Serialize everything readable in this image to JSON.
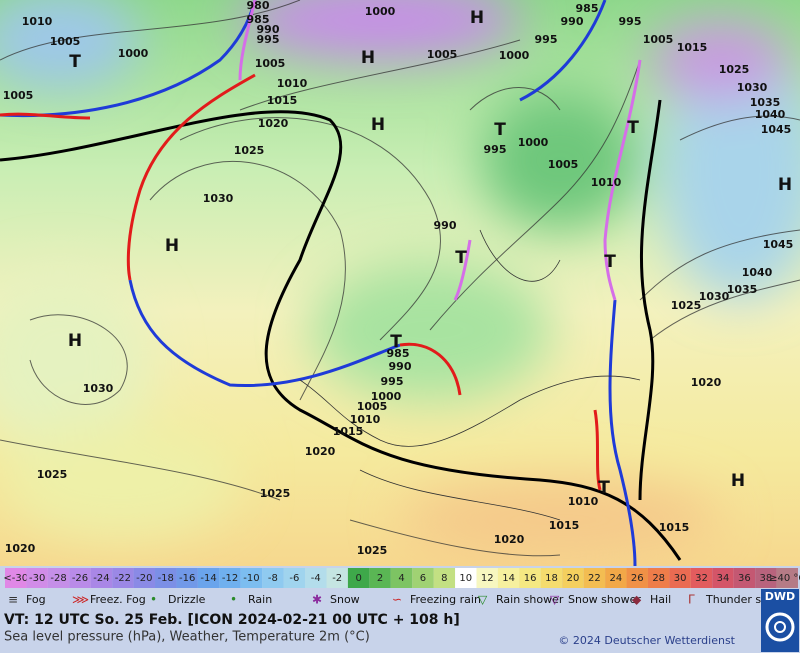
{
  "map": {
    "pressure_labels": [
      "1010",
      "1005",
      "1000",
      "1005",
      "980",
      "985",
      "990",
      "995",
      "1005",
      "1000",
      "1005",
      "1000",
      "995",
      "990",
      "985",
      "995",
      "1005",
      "1015",
      "1025",
      "1030",
      "1035",
      "1040",
      "1045",
      "1010",
      "1015",
      "1020",
      "1025",
      "1030",
      "995",
      "1000",
      "1005",
      "1010",
      "990",
      "1045",
      "1040",
      "1035",
      "1030",
      "1025",
      "1020",
      "1030",
      "1025",
      "1020",
      "985",
      "990",
      "995",
      "1000",
      "1005",
      "1010",
      "1015",
      "1020",
      "1025",
      "1025",
      "1020",
      "1015",
      "1010",
      "1015"
    ],
    "systems": [
      "H",
      "H",
      "H",
      "H",
      "H",
      "H",
      "H",
      "T",
      "T",
      "T",
      "T",
      "T",
      "T",
      "T"
    ]
  },
  "scale": {
    "labels": [
      "<-30",
      "-30",
      "-28",
      "-26",
      "-24",
      "-22",
      "-20",
      "-18",
      "-16",
      "-14",
      "-12",
      "-10",
      "-8",
      "-6",
      "-4",
      "-2",
      "0",
      "2",
      "4",
      "6",
      "8",
      "10",
      "12",
      "14",
      "16",
      "18",
      "20",
      "22",
      "24",
      "26",
      "28",
      "30",
      "32",
      "34",
      "36",
      "38",
      "≥40 °C"
    ]
  },
  "legend": {
    "items": [
      "Fog",
      "Freez. Fog",
      "Drizzle",
      "Rain",
      "Snow",
      "Freezing rain",
      "Rain shower",
      "Snow shower",
      "Hail",
      "Thunder storm"
    ]
  },
  "footer": {
    "valid_time": "VT: 12 UTC So.  25 Feb. [ICON 2024-02-21  00 UTC + 108 h]",
    "caption": "Sea level pressure (hPa), Weather, Temperature 2m (°C)",
    "copyright": "© 2024 Deutscher Wetterdienst",
    "logo": "DWD"
  }
}
